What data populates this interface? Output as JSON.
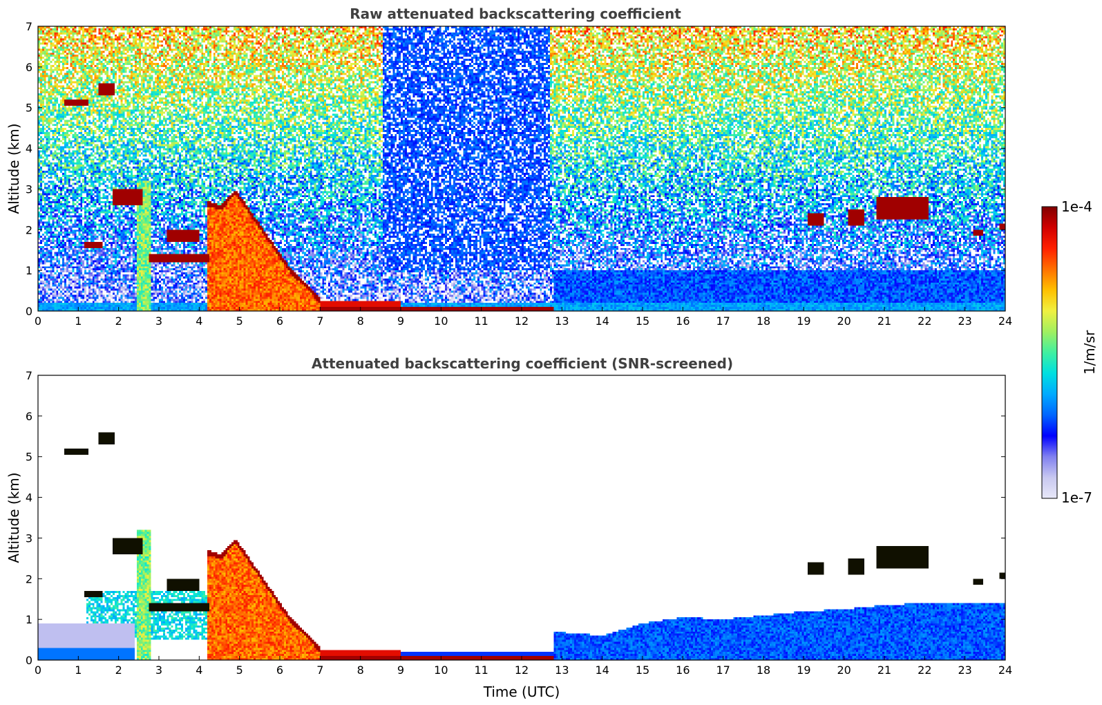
{
  "chart_data": [
    {
      "type": "heatmap",
      "title": "Raw attenuated backscattering coefficient",
      "xlabel": "",
      "ylabel": "Altitude (km)",
      "xlim": [
        0,
        24
      ],
      "ylim": [
        0,
        7
      ],
      "x_ticks": [
        "0",
        "1",
        "2",
        "3",
        "4",
        "5",
        "6",
        "7",
        "8",
        "9",
        "10",
        "11",
        "12",
        "13",
        "14",
        "15",
        "16",
        "17",
        "18",
        "19",
        "20",
        "21",
        "22",
        "23",
        "24"
      ],
      "y_ticks": [
        "0",
        "1",
        "2",
        "3",
        "4",
        "5",
        "6",
        "7"
      ],
      "screened": false,
      "clouds": [
        {
          "t": [
            0.7,
            1.25
          ],
          "alt": [
            5.05,
            5.18
          ],
          "level": "max"
        },
        {
          "t": [
            1.5,
            1.9
          ],
          "alt": [
            5.3,
            5.6
          ],
          "level": "max"
        },
        {
          "t": [
            1.85,
            2.6
          ],
          "alt": [
            2.6,
            2.95
          ],
          "level": "max"
        },
        {
          "t": [
            1.2,
            1.55
          ],
          "alt": [
            1.55,
            1.7
          ],
          "level": "max"
        },
        {
          "t": [
            2.75,
            4.2
          ],
          "alt": [
            1.2,
            1.4
          ],
          "level": "max"
        },
        {
          "t": [
            3.2,
            4.0
          ],
          "alt": [
            1.7,
            2.0
          ],
          "level": "max"
        },
        {
          "t": [
            19.1,
            19.5
          ],
          "alt": [
            2.1,
            2.4
          ],
          "level": "max"
        },
        {
          "t": [
            20.1,
            20.5
          ],
          "alt": [
            2.1,
            2.45
          ],
          "level": "max"
        },
        {
          "t": [
            20.8,
            22.1
          ],
          "alt": [
            2.3,
            2.8
          ],
          "level": "max"
        },
        {
          "t": [
            23.2,
            23.45
          ],
          "alt": [
            1.9,
            2.0
          ],
          "level": "max"
        },
        {
          "t": [
            23.9,
            24.0
          ],
          "alt": [
            2.0,
            2.15
          ],
          "level": "max"
        }
      ],
      "aerosol_layer": {
        "t": [
          4.2,
          7.0
        ],
        "top_km": [
          2.7,
          2.6,
          3.0,
          2.5,
          2.0,
          1.5,
          1.0,
          0.7,
          0.3
        ],
        "level": "high"
      }
    },
    {
      "type": "heatmap",
      "title": "Attenuated backscattering coefficient (SNR-screened)",
      "xlabel": "Time (UTC)",
      "ylabel": "Altitude (km)",
      "xlim": [
        0,
        24
      ],
      "ylim": [
        0,
        7
      ],
      "x_ticks": [
        "0",
        "1",
        "2",
        "3",
        "4",
        "5",
        "6",
        "7",
        "8",
        "9",
        "10",
        "11",
        "12",
        "13",
        "14",
        "15",
        "16",
        "17",
        "18",
        "19",
        "20",
        "21",
        "22",
        "23",
        "24"
      ],
      "y_ticks": [
        "0",
        "1",
        "2",
        "3",
        "4",
        "5",
        "6",
        "7"
      ],
      "screened": true,
      "boundary_layer_top_km": [
        {
          "t": 12.8,
          "alt": 0.7
        },
        {
          "t": 14,
          "alt": 0.6
        },
        {
          "t": 15,
          "alt": 0.9
        },
        {
          "t": 16,
          "alt": 1.05
        },
        {
          "t": 17,
          "alt": 1.0
        },
        {
          "t": 18,
          "alt": 1.1
        },
        {
          "t": 19,
          "alt": 1.2
        },
        {
          "t": 20,
          "alt": 1.25
        },
        {
          "t": 21,
          "alt": 1.35
        },
        {
          "t": 22,
          "alt": 1.4
        },
        {
          "t": 24,
          "alt": 1.4
        }
      ]
    }
  ],
  "colorbar": {
    "label": "1/m/sr",
    "max_label": "1e-4",
    "min_label": "1e-7",
    "scale": "log",
    "colors": [
      "#e8e8f8",
      "#c8c8f0",
      "#8080f0",
      "#0000ff",
      "#0066ff",
      "#00aaff",
      "#00e0e0",
      "#40f0a0",
      "#a0f060",
      "#f0f040",
      "#ffc000",
      "#ff7000",
      "#ff2000",
      "#d00000",
      "#800000"
    ]
  }
}
